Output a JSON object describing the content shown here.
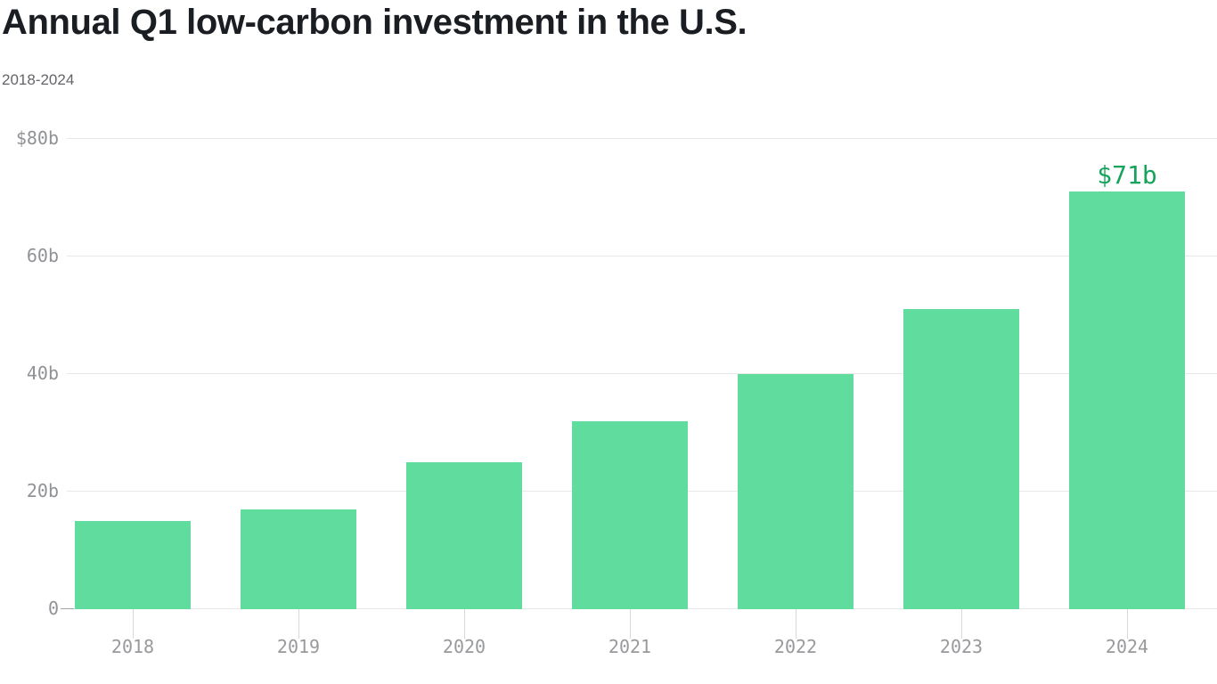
{
  "header": {
    "title": "Annual Q1 low-carbon investment in the U.S.",
    "subtitle": "2018-2024"
  },
  "chart_data": {
    "type": "bar",
    "title": "Annual Q1 low-carbon investment in the U.S.",
    "subtitle": "2018-2024",
    "unit": "billions of U.S. dollars",
    "categories": [
      "2018",
      "2019",
      "2020",
      "2021",
      "2022",
      "2023",
      "2024"
    ],
    "values": [
      15,
      17,
      25,
      32,
      40,
      51,
      71
    ],
    "ylim": [
      0,
      80
    ],
    "yticks": [
      {
        "value": 80,
        "label": "$80b"
      },
      {
        "value": 60,
        "label": "60b"
      },
      {
        "value": 40,
        "label": "40b"
      },
      {
        "value": 20,
        "label": "20b"
      },
      {
        "value": 0,
        "label": "0"
      }
    ],
    "grid": "horizontal",
    "legend": "none",
    "data_labels": [
      {
        "category": "2024",
        "text": "$71b"
      }
    ],
    "colors": {
      "bar": "#5fdc9e",
      "data_label": "#16a45c",
      "gridline": "#e9e9e9",
      "y_axis_text": "#909296",
      "x_axis_text": "#98999c",
      "title_text": "#1a1d21",
      "subtitle_text": "#636569"
    }
  }
}
